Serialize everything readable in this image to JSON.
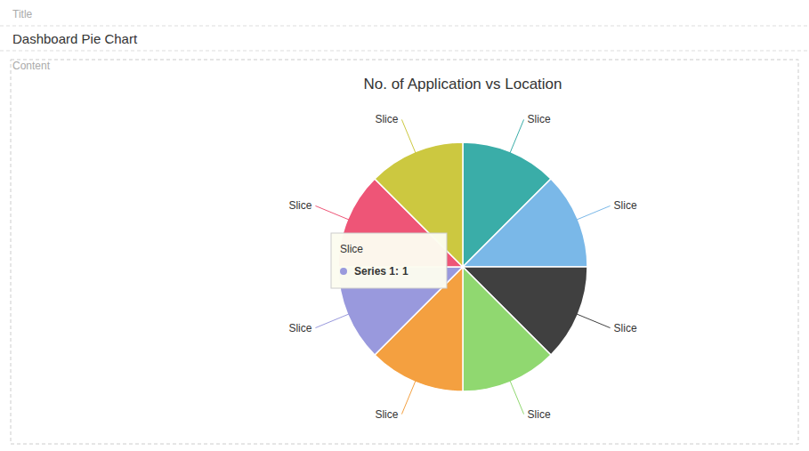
{
  "page": {
    "label_title": "Title",
    "page_title": "Dashboard Pie Chart",
    "label_content": "Content"
  },
  "chart_data": {
    "type": "pie",
    "title": "No. of Application vs Location",
    "categories": [
      "Slice",
      "Slice",
      "Slice",
      "Slice",
      "Slice",
      "Slice",
      "Slice",
      "Slice"
    ],
    "values": [
      1,
      1,
      1,
      1,
      1,
      1,
      1,
      1
    ],
    "colors": [
      "#3aada8",
      "#7ab8e8",
      "#404040",
      "#90d870",
      "#f4a040",
      "#9999dd",
      "#ee5577",
      "#ccc840"
    ],
    "tooltip": {
      "label": "Slice",
      "series": "Series 1:",
      "value": 1,
      "color": "#9999dd"
    }
  }
}
